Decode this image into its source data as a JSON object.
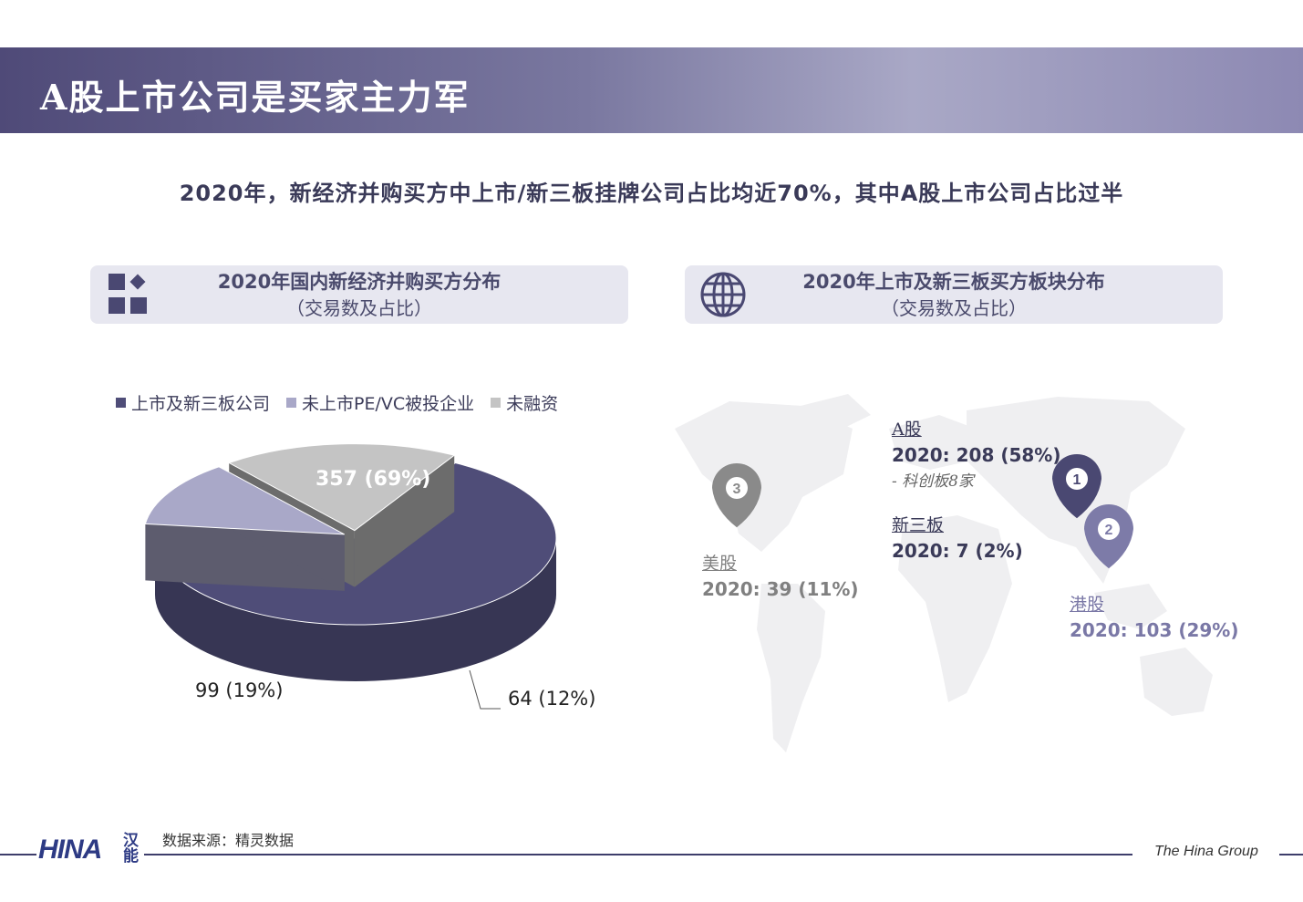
{
  "title": "A股上市公司是买家主力军",
  "subtitle": "2020年，新经济并购买方中上市/新三板挂牌公司占比均近70%，其中A股上市公司占比过半",
  "left_panel": {
    "title": "2020年国内新经济并购买方分布",
    "subtitle": "（交易数及占比）",
    "icon": "squares-diamond-icon"
  },
  "right_panel": {
    "title": "2020年上市及新三板买方板块分布",
    "subtitle": "（交易数及占比）",
    "icon": "globe-icon"
  },
  "chart_data": {
    "type": "pie",
    "title": "2020年国内新经济并购买方分布",
    "legend_position": "top",
    "slices": [
      {
        "name": "上市及新三板公司",
        "value": 357,
        "label": "357 (69%)",
        "color": "#4f4d78"
      },
      {
        "name": "未上市PE/VC被投企业",
        "value": 64,
        "label": "64 (12%)",
        "color": "#a9a8c8"
      },
      {
        "name": "未融资",
        "value": 99,
        "label": "99 (19%)",
        "color": "#c4c4c4"
      }
    ]
  },
  "map": {
    "pins": [
      {
        "number": "1",
        "color": "#4a4872"
      },
      {
        "number": "2",
        "color": "#7d7ba8"
      },
      {
        "number": "3",
        "color": "#8a8a8a"
      }
    ],
    "a_share": {
      "title": "A股",
      "value": "2020: 208 (58%)",
      "note": "-  科创板8家"
    },
    "neeq": {
      "title": "新三板",
      "value": "2020: 7 (2%)"
    },
    "us": {
      "title": "美股",
      "value": "2020: 39 (11%)"
    },
    "hk": {
      "title": "港股",
      "value": "2020: 103 (29%)"
    }
  },
  "footer": {
    "source": "数据来源：精灵数据",
    "brand": "The Hina Group",
    "logo": "HINA",
    "logo_cn": "汉能"
  },
  "colors": {
    "accent": "#4f4a78",
    "light_panel": "#e7e7f0"
  }
}
